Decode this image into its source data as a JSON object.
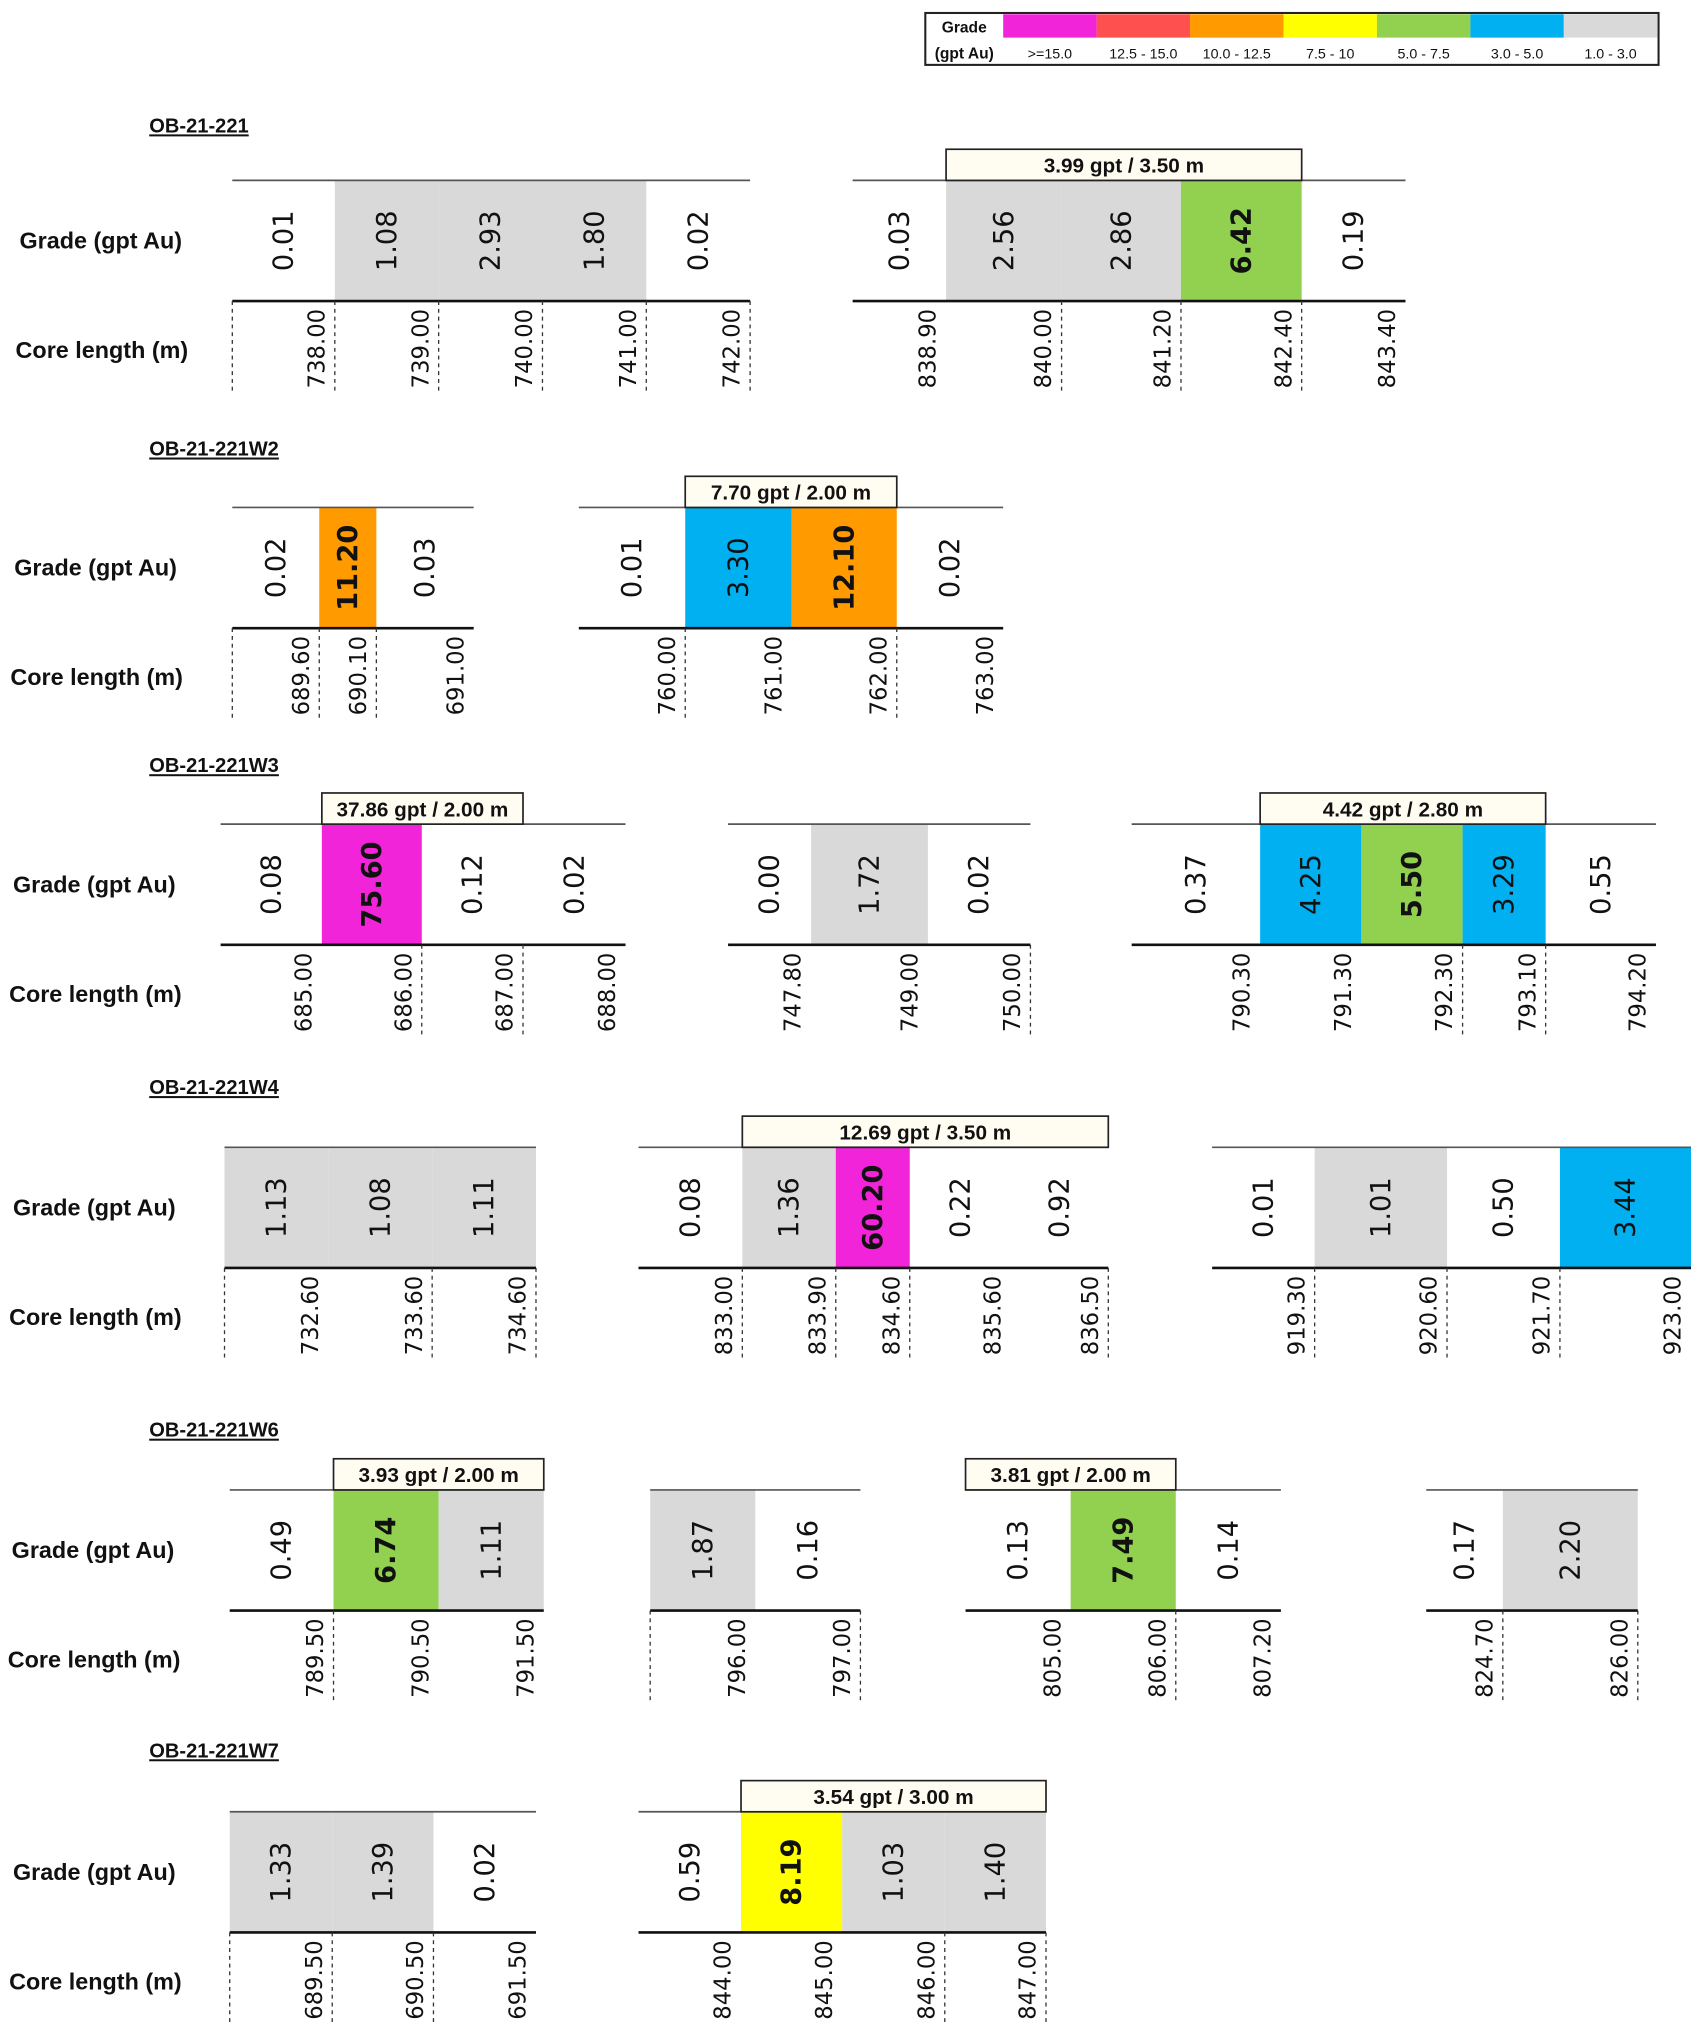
{
  "legend": {
    "title": "Grade",
    "unit": "(gpt Au)",
    "bins": [
      {
        "label": ">=15.0",
        "min": 15.0,
        "max": null,
        "color": "#F224D9"
      },
      {
        "label": "12.5 - 15.0",
        "min": 12.5,
        "max": 15.0,
        "color": "#FF5050"
      },
      {
        "label": "10.0 - 12.5",
        "min": 10.0,
        "max": 12.5,
        "color": "#FF9A00"
      },
      {
        "label": "7.5 - 10",
        "min": 7.5,
        "max": 10,
        "color": "#FFFF00"
      },
      {
        "label": "5.0 - 7.5",
        "min": 5.0,
        "max": 7.5,
        "color": "#92D050"
      },
      {
        "label": "3.0 - 5.0",
        "min": 3.0,
        "max": 5.0,
        "color": "#00B0F0"
      },
      {
        "label": "1.0 - 3.0",
        "min": 1.0,
        "max": 3.0,
        "color": "#D9D9D9"
      }
    ]
  },
  "row_labels": {
    "grade": "Grade (gpt Au)",
    "core_length": "Core length (m)"
  },
  "chart_data": {
    "type": "table",
    "title": "Drill hole assay intervals - gold grade by core length",
    "holes": [
      {
        "name": "OB-21-221",
        "intervals": [
          {
            "composite": null,
            "grades": [
              "0.01",
              "1.08",
              "2.93",
              "1.80",
              "0.02"
            ],
            "depths": [
              "738.00",
              "739.00",
              "740.00",
              "741.00",
              "742.00"
            ]
          },
          {
            "composite": "3.99 gpt / 3.50 m",
            "grades": [
              "0.03",
              "2.56",
              "2.86",
              "6.42",
              "0.19"
            ],
            "depths": [
              "838.90",
              "840.00",
              "841.20",
              "842.40",
              "843.40"
            ]
          }
        ]
      },
      {
        "name": "OB-21-221W2",
        "intervals": [
          {
            "composite": null,
            "grades": [
              "0.02",
              "11.20",
              "0.03"
            ],
            "depths": [
              "689.60",
              "690.10",
              "691.00"
            ]
          },
          {
            "composite": "7.70 gpt / 2.00 m",
            "grades": [
              "0.01",
              "3.30",
              "12.10",
              "0.02"
            ],
            "depths": [
              "760.00",
              "761.00",
              "762.00",
              "763.00"
            ]
          }
        ]
      },
      {
        "name": "OB-21-221W3",
        "intervals": [
          {
            "composite": "37.86 gpt / 2.00 m",
            "grades": [
              "0.08",
              "75.60",
              "0.12",
              "0.02"
            ],
            "depths": [
              "685.00",
              "686.00",
              "687.00",
              "688.00"
            ]
          },
          {
            "composite": null,
            "grades": [
              "0.00",
              "1.72",
              "0.02"
            ],
            "depths": [
              "747.80",
              "749.00",
              "750.00"
            ]
          },
          {
            "composite": "4.42 gpt / 2.80 m",
            "grades": [
              "0.37",
              "4.25",
              "5.50",
              "3.29",
              "0.55"
            ],
            "depths": [
              "790.30",
              "791.30",
              "792.30",
              "793.10",
              "794.20"
            ]
          }
        ]
      },
      {
        "name": "OB-21-221W4",
        "intervals": [
          {
            "composite": null,
            "grades": [
              "1.13",
              "1.08",
              "1.11"
            ],
            "depths": [
              "732.60",
              "733.60",
              "734.60"
            ]
          },
          {
            "composite": "12.69 gpt / 3.50 m",
            "grades": [
              "0.08",
              "1.36",
              "60.20",
              "0.22",
              "0.92"
            ],
            "depths": [
              "833.00",
              "833.90",
              "834.60",
              "835.60",
              "836.50"
            ]
          },
          {
            "composite": null,
            "grades": [
              "0.01",
              "1.01",
              "0.50",
              "3.44"
            ],
            "depths": [
              "919.30",
              "920.60",
              "921.70",
              "923.00"
            ]
          }
        ]
      },
      {
        "name": "OB-21-221W6",
        "intervals": [
          {
            "composite": "3.93 gpt / 2.00 m",
            "grades": [
              "0.49",
              "6.74",
              "1.11"
            ],
            "depths": [
              "789.50",
              "790.50",
              "791.50"
            ]
          },
          {
            "composite": null,
            "grades": [
              "1.87",
              "0.16"
            ],
            "depths": [
              "796.00",
              "797.00"
            ]
          },
          {
            "composite": "3.81 gpt / 2.00 m",
            "grades": [
              "0.13",
              "7.49",
              "0.14"
            ],
            "depths": [
              "805.00",
              "806.00",
              "807.20"
            ]
          },
          {
            "composite": null,
            "grades": [
              "0.17",
              "2.20"
            ],
            "depths": [
              "824.70",
              "826.00"
            ]
          }
        ]
      },
      {
        "name": "OB-21-221W7",
        "intervals": [
          {
            "composite": null,
            "grades": [
              "1.33",
              "1.39",
              "0.02"
            ],
            "depths": [
              "689.50",
              "690.50",
              "691.50"
            ]
          },
          {
            "composite": "3.54 gpt / 3.00 m",
            "grades": [
              "0.59",
              "8.19",
              "1.03",
              "1.40"
            ],
            "depths": [
              "844.00",
              "845.00",
              "846.00",
              "847.00"
            ]
          }
        ]
      }
    ]
  }
}
